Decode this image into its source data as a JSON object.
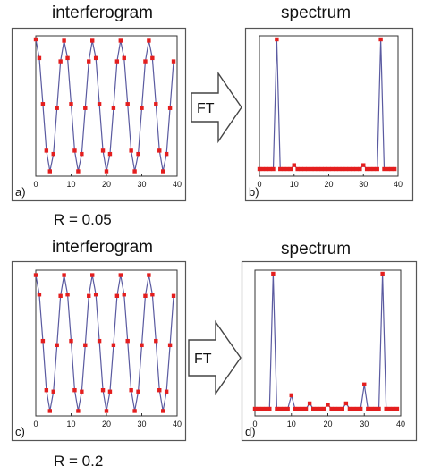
{
  "figure": {
    "top_left_heading": "interferogram",
    "top_right_heading": "spectrum",
    "bottom_left_heading": "interferogram",
    "bottom_right_heading": "spectrum",
    "top_r_label": "R = 0.05",
    "bottom_r_label": "R = 0.2",
    "arrow_label_top": "FT",
    "arrow_label_bottom": "FT"
  },
  "colors": {
    "line": "#5a5aa0",
    "marker": "#e41e1e",
    "frame": "#555555"
  },
  "chart_data": [
    {
      "type": "line",
      "panel_label": "a)",
      "heading": "interferogram",
      "xlim": [
        0,
        40
      ],
      "ylim": [
        -1,
        1
      ],
      "xticks": [
        "0",
        "10",
        "20",
        "30",
        "40"
      ],
      "series": [
        {
          "x": [
            0,
            1,
            2,
            3,
            4,
            5,
            6,
            7,
            8,
            9,
            10,
            11,
            12,
            13,
            14,
            15,
            16,
            17,
            18,
            19,
            20,
            21,
            22,
            23,
            24,
            25,
            26,
            27,
            28,
            29,
            30,
            31,
            32,
            33,
            34,
            35,
            36,
            37,
            38,
            39
          ],
          "values": [
            1,
            0.72,
            0.03,
            -0.67,
            -0.98,
            -0.72,
            -0.03,
            0.67,
            0.98,
            0.72,
            0.03,
            -0.67,
            -0.98,
            -0.72,
            -0.03,
            0.67,
            0.98,
            0.72,
            0.03,
            -0.67,
            -0.98,
            -0.72,
            -0.03,
            0.67,
            0.98,
            0.72,
            0.03,
            -0.67,
            -0.98,
            -0.72,
            -0.03,
            0.67,
            0.98,
            0.72,
            0.03,
            -0.67,
            -0.98,
            -0.72,
            -0.03,
            0.67
          ]
        }
      ]
    },
    {
      "type": "line",
      "panel_label": "b)",
      "heading": "spectrum",
      "xlim": [
        0,
        40
      ],
      "ylim": [
        0,
        1
      ],
      "xticks": [
        "0",
        "10",
        "20",
        "30",
        "40"
      ],
      "series": [
        {
          "x": [
            0,
            1,
            2,
            3,
            4,
            5,
            6,
            7,
            8,
            9,
            10,
            11,
            12,
            13,
            14,
            15,
            16,
            17,
            18,
            19,
            20,
            21,
            22,
            23,
            24,
            25,
            26,
            27,
            28,
            29,
            30,
            31,
            32,
            33,
            34,
            35,
            36,
            37,
            38,
            39
          ],
          "values": [
            0,
            0,
            0,
            0,
            0,
            1,
            0,
            0,
            0,
            0,
            0.03,
            0,
            0,
            0,
            0,
            0,
            0,
            0,
            0,
            0,
            0,
            0,
            0,
            0,
            0,
            0,
            0,
            0,
            0,
            0,
            0.03,
            0,
            0,
            0,
            0,
            1,
            0,
            0,
            0,
            0
          ]
        }
      ]
    },
    {
      "type": "line",
      "panel_label": "c)",
      "heading": "interferogram",
      "xlim": [
        0,
        40
      ],
      "ylim": [
        -1,
        1
      ],
      "xticks": [
        "0",
        "10",
        "20",
        "30",
        "40"
      ],
      "series": [
        {
          "x": [
            0,
            1,
            2,
            3,
            4,
            5,
            6,
            7,
            8,
            9,
            10,
            11,
            12,
            13,
            14,
            15,
            16,
            17,
            18,
            19,
            20,
            21,
            22,
            23,
            24,
            25,
            26,
            27,
            28,
            29,
            30,
            31,
            32,
            33,
            34,
            35,
            36,
            37,
            38,
            39
          ],
          "values": [
            0.98,
            0.7,
            0.03,
            -0.68,
            -0.98,
            -0.7,
            -0.03,
            0.68,
            0.98,
            0.7,
            0.03,
            -0.68,
            -0.98,
            -0.7,
            -0.03,
            0.68,
            0.98,
            0.7,
            0.03,
            -0.68,
            -0.98,
            -0.7,
            -0.03,
            0.68,
            0.98,
            0.7,
            0.03,
            -0.68,
            -0.98,
            -0.7,
            -0.03,
            0.68,
            0.98,
            0.7,
            0.03,
            -0.68,
            -0.98,
            -0.7,
            -0.03,
            0.68
          ]
        }
      ]
    },
    {
      "type": "line",
      "panel_label": "d)",
      "heading": "spectrum",
      "xlim": [
        0,
        40
      ],
      "ylim": [
        0,
        1
      ],
      "xticks": [
        "0",
        "10",
        "20",
        "30",
        "40"
      ],
      "series": [
        {
          "x": [
            0,
            1,
            2,
            3,
            4,
            5,
            6,
            7,
            8,
            9,
            10,
            11,
            12,
            13,
            14,
            15,
            16,
            17,
            18,
            19,
            20,
            21,
            22,
            23,
            24,
            25,
            26,
            27,
            28,
            29,
            30,
            31,
            32,
            33,
            34,
            35,
            36,
            37,
            38,
            39
          ],
          "values": [
            0,
            0,
            0,
            0,
            0,
            1,
            0,
            0,
            0,
            0,
            0.1,
            0,
            0,
            0,
            0,
            0.04,
            0,
            0,
            0,
            0,
            0.03,
            0,
            0,
            0,
            0,
            0.04,
            0,
            0,
            0,
            0,
            0.18,
            0,
            0,
            0,
            0,
            1,
            0,
            0,
            0,
            0
          ]
        }
      ]
    }
  ]
}
